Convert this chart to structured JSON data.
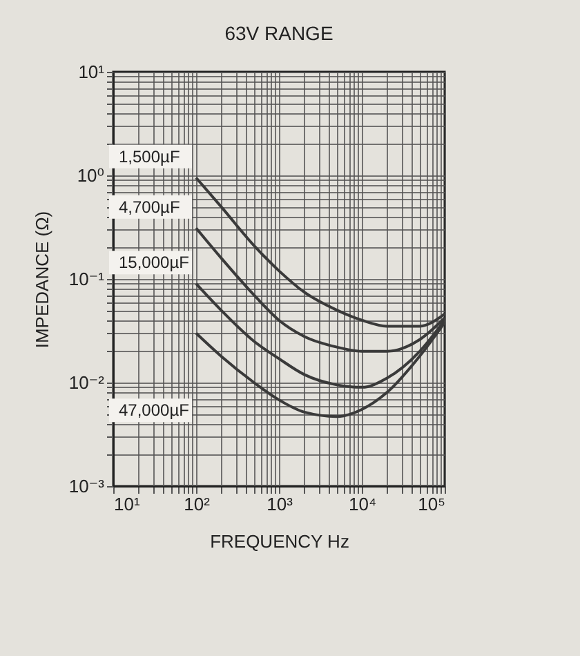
{
  "chart_data": {
    "type": "line",
    "title": "63V RANGE",
    "xlabel": "FREQUENCY Hz",
    "ylabel": "IMPEDANCE (Ω)",
    "x": [
      100,
      200,
      500,
      1000,
      2000,
      5000,
      10000,
      20000,
      50000,
      100000
    ],
    "series": [
      {
        "name": "1,500µF",
        "color": "#3a3a3a",
        "values": [
          0.95,
          0.5,
          0.21,
          0.12,
          0.075,
          0.05,
          0.04,
          0.035,
          0.035,
          0.046
        ]
      },
      {
        "name": "4,700µF",
        "color": "#3a3a3a",
        "values": [
          0.31,
          0.16,
          0.07,
          0.04,
          0.028,
          0.022,
          0.02,
          0.02,
          0.026,
          0.042
        ]
      },
      {
        "name": "15,000µF",
        "color": "#3a3a3a",
        "values": [
          0.09,
          0.05,
          0.025,
          0.017,
          0.012,
          0.0095,
          0.009,
          0.011,
          0.02,
          0.04
        ]
      },
      {
        "name": "47,000µF",
        "color": "#3a3a3a",
        "values": [
          0.03,
          0.018,
          0.01,
          0.0068,
          0.0052,
          0.0047,
          0.0055,
          0.008,
          0.018,
          0.038
        ]
      }
    ],
    "log": "xy",
    "grid": true,
    "marker": "none",
    "line_style": "solid",
    "xlim": [
      10,
      100000
    ],
    "ylim": [
      0.001,
      10
    ],
    "xticks": [
      {
        "value": 10,
        "label": "10¹"
      },
      {
        "value": 100,
        "label": "10²"
      },
      {
        "value": 1000,
        "label": "10³"
      },
      {
        "value": 10000,
        "label": "10⁴"
      },
      {
        "value": 100000,
        "label": "10⁵"
      }
    ],
    "yticks": [
      {
        "value": 0.001,
        "label": "10⁻³"
      },
      {
        "value": 0.01,
        "label": "10⁻²"
      },
      {
        "value": 0.1,
        "label": "10⁻¹"
      },
      {
        "value": 1,
        "label": "10⁰"
      },
      {
        "value": 10,
        "label": "10¹"
      }
    ]
  }
}
